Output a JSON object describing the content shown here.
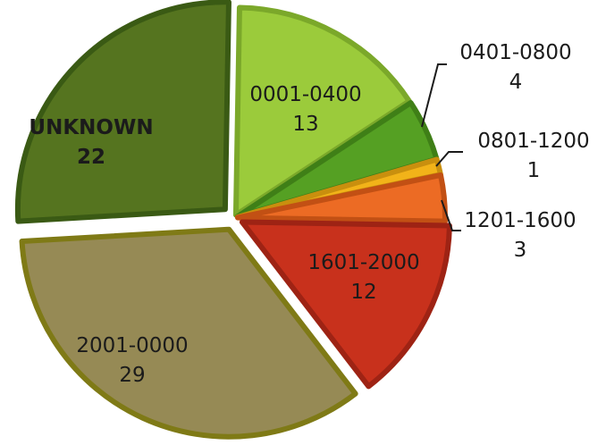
{
  "chart_data": {
    "type": "pie",
    "title": "",
    "slices": [
      {
        "label": "0001-0400",
        "value": 13,
        "color": "#9BCB3B",
        "stroke": "#7BA82A"
      },
      {
        "label": "0401-0800",
        "value": 4,
        "color": "#55A023",
        "stroke": "#3F7F17"
      },
      {
        "label": "0801-1200",
        "value": 1,
        "color": "#F2B319",
        "stroke": "#C98F0E"
      },
      {
        "label": "1201-1600",
        "value": 3,
        "color": "#EC6B24",
        "stroke": "#C25014"
      },
      {
        "label": "1601-2000",
        "value": 12,
        "color": "#C8311C",
        "stroke": "#9E2314"
      },
      {
        "label": "2001-0000",
        "value": 29,
        "color": "#968A55",
        "stroke": "#7F7A16"
      },
      {
        "label": "UNKNOWN",
        "value": 22,
        "color": "#55741F",
        "stroke": "#3A5A14"
      }
    ],
    "legend": "none",
    "labels": "category and value on slices"
  }
}
